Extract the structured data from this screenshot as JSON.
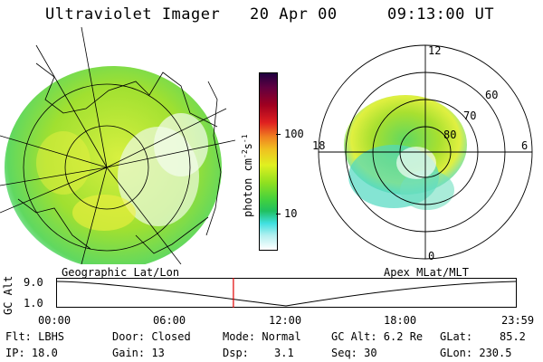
{
  "header": {
    "title": "Ultraviolet Imager",
    "date": "20 Apr 00",
    "time": "09:13:00 UT"
  },
  "colorbar": {
    "unit": "photon cm",
    "unit_exponent1": "-2",
    "unit_s": "s",
    "unit_exponent2": "-1",
    "ticks": [
      "100",
      "10"
    ],
    "scale": "log",
    "colors": [
      "#ffffff",
      "#b4f0f0",
      "#40e0e0",
      "#20c060",
      "#40d040",
      "#90e020",
      "#e0f020",
      "#f0c020",
      "#f08020",
      "#e02020",
      "#a00020",
      "#600040",
      "#200040"
    ]
  },
  "geo_panel": {
    "label": "Geographic Lat/Lon"
  },
  "polar_panel": {
    "label": "Apex MLat/MLT",
    "mlt_labels": {
      "top": "12",
      "left": "18",
      "right": "6",
      "bottom": "0"
    },
    "lat_labels": [
      "60",
      "70",
      "80"
    ]
  },
  "timeline": {
    "ylabel": "GC Alt",
    "yvalue": "9.0",
    "ytick2": "1.0",
    "ticks": [
      "00:00",
      "06:00",
      "12:00",
      "18:00",
      "23:59"
    ],
    "marker_color": "#e00000",
    "marker_time_hours": 9.22
  },
  "info": {
    "flt": "Flt: LBHS",
    "ip": "IP: 18.0",
    "door": "Door: Closed",
    "gain": "Gain: 13",
    "mode": "Mode: Normal",
    "dsp_label": "Dsp:",
    "dsp_value": "3.1",
    "gcalt": "GC Alt: 6.2 Re",
    "seq": "Seq: 30",
    "glat": "GLat:",
    "glat_value": "85.2",
    "glon": "GLon: 230.5"
  }
}
